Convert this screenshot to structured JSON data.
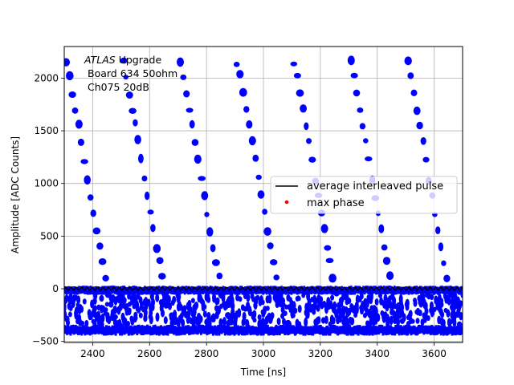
{
  "chart_data": {
    "type": "scatter",
    "xlabel": "Time [ns]",
    "ylabel": "Amplitude [ADC Counts]",
    "xlim": [
      2300,
      3700
    ],
    "ylim": [
      -510,
      2300
    ],
    "xticks": [
      2400,
      2600,
      2800,
      3000,
      3200,
      3400,
      3600
    ],
    "yticks": [
      -500,
      0,
      500,
      1000,
      1500,
      2000
    ],
    "grid": true,
    "annotation": {
      "line1_italic": "ATLAS",
      "line1_rest": " Upgrade",
      "line2": "Board 634 50ohm",
      "line3": "Ch075 20dB"
    },
    "legend": {
      "placement": "center-right",
      "entries": [
        {
          "label": "average interleaved pulse",
          "color": "#000000",
          "marker": "line"
        },
        {
          "label": "max phase",
          "color": "#ff0000",
          "marker": "dot"
        }
      ]
    },
    "series": [
      {
        "kind": "samples",
        "color": "#0000ff",
        "pattern": {
          "period_ns": 200,
          "x_start": 2300,
          "x_end": 3700,
          "amplitudes": [
            2150,
            2020,
            1850,
            1700,
            1560,
            1400,
            1220,
            1040,
            880,
            720,
            560,
            400,
            250,
            110,
            -40,
            -160,
            -250,
            -320,
            -380
          ]
        }
      },
      {
        "name": "average interleaved pulse",
        "kind": "line",
        "color": "#000000",
        "baseline": 0
      }
    ]
  }
}
